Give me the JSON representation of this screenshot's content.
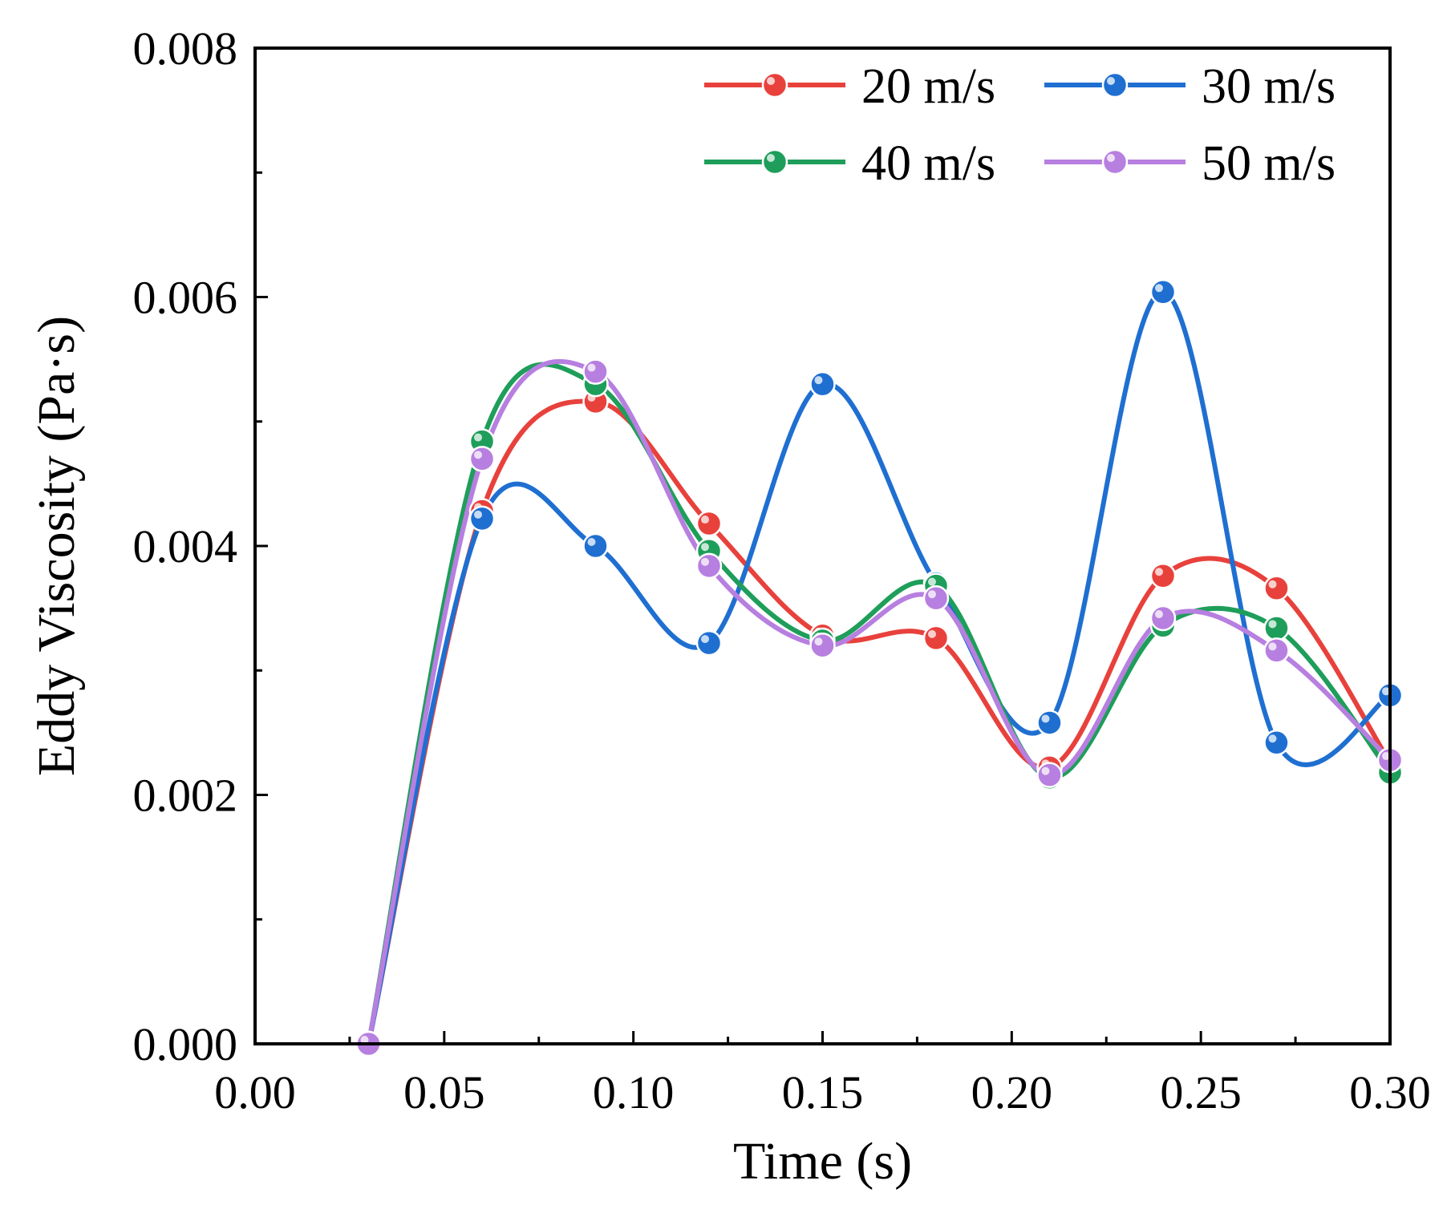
{
  "chart_data": {
    "type": "line",
    "title": "",
    "xlabel": "Time (s)",
    "ylabel": "Eddy Viscosity (Pa·s)",
    "xlim": [
      0.0,
      0.3
    ],
    "ylim": [
      0.0,
      0.008
    ],
    "x_ticks": [
      "0.00",
      "0.05",
      "0.10",
      "0.15",
      "0.20",
      "0.25",
      "0.30"
    ],
    "y_ticks": [
      "0.000",
      "0.002",
      "0.004",
      "0.006",
      "0.008"
    ],
    "x_tick_values": [
      0.0,
      0.05,
      0.1,
      0.15,
      0.2,
      0.25,
      0.3
    ],
    "y_tick_values": [
      0.0,
      0.002,
      0.004,
      0.006,
      0.008
    ],
    "grid": false,
    "legend_position": "top-right",
    "x": [
      0.03,
      0.06,
      0.09,
      0.12,
      0.15,
      0.18,
      0.21,
      0.24,
      0.27,
      0.3
    ],
    "series": [
      {
        "name": "20 m/s",
        "color": "#e8413c",
        "values": [
          0.0,
          0.00428,
          0.00516,
          0.00418,
          0.00328,
          0.00326,
          0.00222,
          0.00376,
          0.00366,
          0.00226
        ]
      },
      {
        "name": "30 m/s",
        "color": "#1f6fd1",
        "values": [
          0.0,
          0.00422,
          0.004,
          0.00322,
          0.0053,
          0.0037,
          0.00258,
          0.00604,
          0.00242,
          0.0028
        ]
      },
      {
        "name": "40 m/s",
        "color": "#1e9e5a",
        "values": [
          0.0,
          0.00484,
          0.0053,
          0.00396,
          0.00324,
          0.00368,
          0.00214,
          0.00336,
          0.00334,
          0.00218
        ]
      },
      {
        "name": "50 m/s",
        "color": "#b77fe0",
        "values": [
          0.0,
          0.0047,
          0.0054,
          0.00384,
          0.0032,
          0.00358,
          0.00216,
          0.00342,
          0.00316,
          0.00228
        ]
      }
    ]
  }
}
